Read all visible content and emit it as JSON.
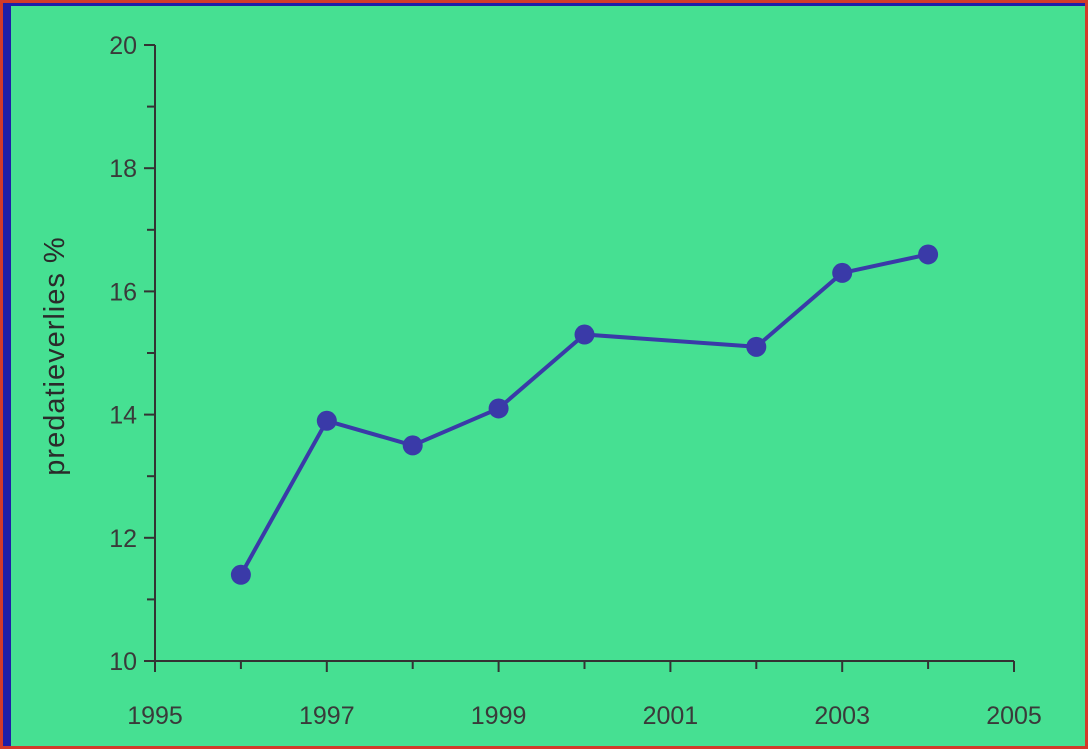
{
  "chart_data": {
    "type": "line",
    "title": "",
    "xlabel": "",
    "ylabel": "predatieverlies %",
    "xlim": [
      1995,
      2005
    ],
    "ylim": [
      10,
      20
    ],
    "x_ticks": [
      "1995",
      "1997",
      "1999",
      "2001",
      "2003",
      "2005"
    ],
    "y_ticks": [
      "10",
      "12",
      "14",
      "16",
      "18",
      "20"
    ],
    "grid": false,
    "legend": "none",
    "series": [
      {
        "x": [
          1996,
          1997,
          1998,
          1999,
          2000,
          2002,
          2003,
          2004
        ],
        "y": [
          11.4,
          13.9,
          13.5,
          14.1,
          15.3,
          15.1,
          16.3,
          16.6
        ],
        "color": "#3a3aa8"
      }
    ]
  },
  "colors": {
    "background": "#1a1aa6",
    "plot_area": "#46e092",
    "border": "#d23a2a",
    "series": "#3a3aa8"
  }
}
